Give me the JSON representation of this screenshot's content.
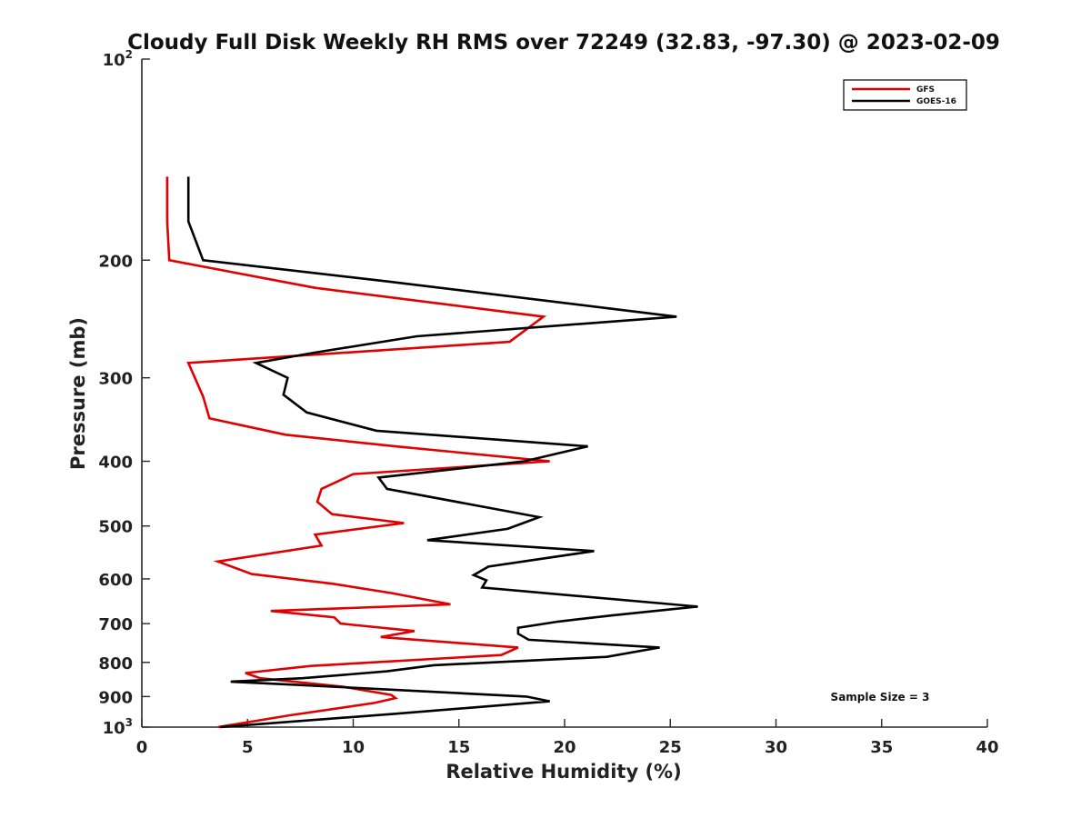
{
  "chart_data": {
    "type": "line",
    "title": "Cloudy Full Disk Weekly RH RMS over 72249 (32.83, -97.30) @ 2023-02-09",
    "xlabel": "Relative Humidity (%)",
    "ylabel": "Pressure (mb)",
    "xlim": [
      0,
      40
    ],
    "ylim": [
      100,
      1000
    ],
    "y_scale": "log",
    "y_reversed": true,
    "grid": false,
    "legend_position": "top-right",
    "x_ticks": [
      "0",
      "5",
      "10",
      "15",
      "20",
      "25",
      "30",
      "35",
      "40"
    ],
    "y_ticks": [
      {
        "value": 100,
        "base": "10",
        "exp": "2"
      },
      {
        "value": 200,
        "label": "200"
      },
      {
        "value": 300,
        "label": "300"
      },
      {
        "value": 400,
        "label": "400"
      },
      {
        "value": 500,
        "label": "500"
      },
      {
        "value": 600,
        "label": "600"
      },
      {
        "value": 700,
        "label": "700"
      },
      {
        "value": 800,
        "label": "800"
      },
      {
        "value": 900,
        "label": "900"
      },
      {
        "value": 1000,
        "base": "10",
        "exp": "3"
      }
    ],
    "annotation": "Sample Size = 3",
    "series": [
      {
        "name": "GFS",
        "color": "#e00000",
        "points": [
          [
            1.2,
            150
          ],
          [
            1.2,
            175
          ],
          [
            1.3,
            200
          ],
          [
            8.2,
            220
          ],
          [
            19.0,
            243
          ],
          [
            17.4,
            265
          ],
          [
            2.2,
            285
          ],
          [
            2.9,
            320
          ],
          [
            3.2,
            345
          ],
          [
            6.8,
            365
          ],
          [
            12.0,
            380
          ],
          [
            19.3,
            400
          ],
          [
            10.0,
            418
          ],
          [
            8.5,
            440
          ],
          [
            8.3,
            460
          ],
          [
            9.0,
            480
          ],
          [
            12.4,
            495
          ],
          [
            8.2,
            515
          ],
          [
            8.5,
            535
          ],
          [
            3.6,
            565
          ],
          [
            5.2,
            590
          ],
          [
            9.0,
            610
          ],
          [
            11.8,
            630
          ],
          [
            14.6,
            655
          ],
          [
            6.1,
            670
          ],
          [
            9.1,
            685
          ],
          [
            9.4,
            700
          ],
          [
            12.9,
            718
          ],
          [
            11.3,
            733
          ],
          [
            17.8,
            760
          ],
          [
            17.0,
            780
          ],
          [
            8.0,
            810
          ],
          [
            4.9,
            830
          ],
          [
            5.6,
            845
          ],
          [
            9.5,
            870
          ],
          [
            11.8,
            895
          ],
          [
            12.0,
            905
          ],
          [
            11.0,
            920
          ],
          [
            7.0,
            960
          ],
          [
            3.6,
            1000
          ]
        ]
      },
      {
        "name": "GOES-16",
        "color": "#000000",
        "points": [
          [
            2.2,
            150
          ],
          [
            2.2,
            175
          ],
          [
            2.9,
            200
          ],
          [
            11.5,
            215
          ],
          [
            25.3,
            243
          ],
          [
            13.0,
            260
          ],
          [
            8.2,
            275
          ],
          [
            5.4,
            285
          ],
          [
            6.9,
            300
          ],
          [
            6.7,
            318
          ],
          [
            7.8,
            338
          ],
          [
            11.1,
            360
          ],
          [
            21.1,
            380
          ],
          [
            18.1,
            400
          ],
          [
            11.2,
            423
          ],
          [
            11.6,
            440
          ],
          [
            18.8,
            485
          ],
          [
            17.3,
            505
          ],
          [
            13.5,
            525
          ],
          [
            21.4,
            545
          ],
          [
            16.4,
            575
          ],
          [
            15.7,
            592
          ],
          [
            16.3,
            603
          ],
          [
            16.1,
            618
          ],
          [
            26.3,
            660
          ],
          [
            22.3,
            680
          ],
          [
            19.7,
            695
          ],
          [
            17.8,
            710
          ],
          [
            17.8,
            725
          ],
          [
            18.3,
            740
          ],
          [
            24.5,
            760
          ],
          [
            22.0,
            785
          ],
          [
            13.8,
            808
          ],
          [
            11.6,
            825
          ],
          [
            7.6,
            845
          ],
          [
            4.2,
            855
          ],
          [
            7.5,
            865
          ],
          [
            18.2,
            900
          ],
          [
            19.3,
            915
          ],
          [
            12.0,
            955
          ],
          [
            3.7,
            1000
          ]
        ]
      }
    ]
  }
}
